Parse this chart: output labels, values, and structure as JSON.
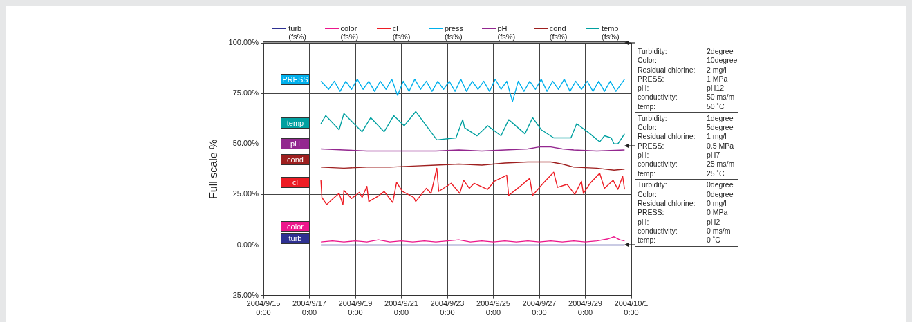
{
  "chart_data": {
    "type": "line",
    "ylabel": "Full scale %",
    "legend": "top",
    "grid": true,
    "marker": "none",
    "xlim": [
      "2004-09-15",
      "2004-10-01"
    ],
    "xticks": [
      {
        "value": "2004-09-15",
        "label": "2004/9/15\n0:00"
      },
      {
        "value": "2004-09-17",
        "label": "2004/9/17\n0:00"
      },
      {
        "value": "2004-09-19",
        "label": "2004/9/19\n0:00"
      },
      {
        "value": "2004-09-21",
        "label": "2004/9/21\n0:00"
      },
      {
        "value": "2004-09-23",
        "label": "2004/9/23\n0:00"
      },
      {
        "value": "2004-09-25",
        "label": "2004/9/25\n0:00"
      },
      {
        "value": "2004-09-27",
        "label": "2004/9/27\n0:00"
      },
      {
        "value": "2004-09-29",
        "label": "2004/9/29\n0:00"
      },
      {
        "value": "2004-10-01",
        "label": "2004/10/1\n0:00"
      }
    ],
    "ylim": [
      -25,
      100
    ],
    "yticks": [
      {
        "value": -25,
        "label": "-25.00%"
      },
      {
        "value": 0,
        "label": "0.00%"
      },
      {
        "value": 25,
        "label": "25.00%"
      },
      {
        "value": 50,
        "label": "50.00%"
      },
      {
        "value": 75,
        "label": "75.00%"
      },
      {
        "value": 100,
        "label": "100.00%"
      }
    ],
    "series": [
      {
        "name": "turb (fs%)",
        "color": "#2e3192",
        "x": [
          "2004-09-17T12:00",
          "2004-09-20T12:00",
          "2004-09-24T12:00",
          "2004-09-28T12:00",
          "2004-09-30T17:00"
        ],
        "values": [
          0,
          0,
          0,
          0,
          0
        ]
      },
      {
        "name": "color (fs%)",
        "color": "#ec168c",
        "x": [
          "2004-09-17T12:00",
          "2004-09-18T00:00",
          "2004-09-18T12:00",
          "2004-09-19T00:00",
          "2004-09-19T12:00",
          "2004-09-20T00:00",
          "2004-09-20T12:00",
          "2004-09-21T00:00",
          "2004-09-21T12:00",
          "2004-09-22T00:00",
          "2004-09-22T12:00",
          "2004-09-23T00:00",
          "2004-09-23T12:00",
          "2004-09-24T00:00",
          "2004-09-24T12:00",
          "2004-09-25T00:00",
          "2004-09-25T12:00",
          "2004-09-26T00:00",
          "2004-09-26T12:00",
          "2004-09-27T00:00",
          "2004-09-27T12:00",
          "2004-09-28T00:00",
          "2004-09-28T12:00",
          "2004-09-29T00:00",
          "2004-09-29T12:00",
          "2004-09-30T00:00",
          "2004-09-30T06:00",
          "2004-09-30T12:00",
          "2004-09-30T17:00"
        ],
        "values": [
          1.5,
          2,
          1.5,
          2,
          1.5,
          2.5,
          1.5,
          2,
          1.5,
          2,
          1.5,
          2,
          2.5,
          1.5,
          2,
          1.5,
          2,
          1.5,
          2,
          1.5,
          2,
          1.5,
          2,
          1.5,
          2,
          3,
          4,
          2.5,
          2
        ]
      },
      {
        "name": "cl (fs%)",
        "color": "#ed1c24",
        "x": [
          "2004-09-17T12:00",
          "2004-09-17T13:00",
          "2004-09-17T18:00",
          "2004-09-18T02:00",
          "2004-09-18T07:00",
          "2004-09-18T11:00",
          "2004-09-18T12:00",
          "2004-09-18T20:00",
          "2004-09-19T04:00",
          "2004-09-19T07:00",
          "2004-09-19T12:00",
          "2004-09-19T14:00",
          "2004-09-20T01:00",
          "2004-09-20T06:00",
          "2004-09-20T15:00",
          "2004-09-20T19:00",
          "2004-09-21T01:00",
          "2004-09-21T13:00",
          "2004-09-21T15:00",
          "2004-09-22T02:00",
          "2004-09-22T07:00",
          "2004-09-22T13:00",
          "2004-09-22T15:00",
          "2004-09-23T04:00",
          "2004-09-23T13:00",
          "2004-09-23T17:00",
          "2004-09-23T23:00",
          "2004-09-24T04:00",
          "2004-09-24T18:00",
          "2004-09-25T01:00",
          "2004-09-25T14:00",
          "2004-09-25T16:00",
          "2004-09-26T04:00",
          "2004-09-26T14:00",
          "2004-09-26T17:00",
          "2004-09-27T04:00",
          "2004-09-27T15:00",
          "2004-09-27T19:00",
          "2004-09-28T05:00",
          "2004-09-28T13:00",
          "2004-09-28T20:00",
          "2004-09-28T22:00",
          "2004-09-29T05:00",
          "2004-09-29T15:00",
          "2004-09-29T20:00",
          "2004-09-30T05:00",
          "2004-09-30T10:00",
          "2004-09-30T15:00",
          "2004-09-30T17:00"
        ],
        "values": [
          32,
          23.5,
          20,
          23.5,
          25.5,
          20,
          27,
          23,
          26,
          23.5,
          29,
          21.5,
          24.5,
          26.5,
          21,
          31,
          26.5,
          23.5,
          21.5,
          28,
          25.5,
          38,
          26.5,
          30.5,
          25.5,
          32,
          28,
          30.5,
          27.5,
          31.5,
          34.5,
          24.5,
          29,
          33,
          24.5,
          30.5,
          36,
          28.5,
          30,
          25,
          31.5,
          25.5,
          30.5,
          35.5,
          28,
          32,
          27.5,
          34,
          27.5
        ]
      },
      {
        "name": "press (fs%)",
        "color": "#00b0ec",
        "x": [
          "2004-09-17T12:00",
          "2004-09-17T20:00",
          "2004-09-18T02:00",
          "2004-09-18T08:00",
          "2004-09-18T14:00",
          "2004-09-18T20:00",
          "2004-09-19T02:00",
          "2004-09-19T08:00",
          "2004-09-19T14:00",
          "2004-09-19T20:00",
          "2004-09-20T02:00",
          "2004-09-20T08:00",
          "2004-09-20T14:00",
          "2004-09-20T20:00",
          "2004-09-21T02:00",
          "2004-09-21T08:00",
          "2004-09-21T14:00",
          "2004-09-21T20:00",
          "2004-09-22T02:00",
          "2004-09-22T08:00",
          "2004-09-22T14:00",
          "2004-09-22T20:00",
          "2004-09-23T02:00",
          "2004-09-23T08:00",
          "2004-09-23T14:00",
          "2004-09-23T20:00",
          "2004-09-24T02:00",
          "2004-09-24T08:00",
          "2004-09-24T14:00",
          "2004-09-24T20:00",
          "2004-09-25T02:00",
          "2004-09-25T08:00",
          "2004-09-25T14:00",
          "2004-09-25T20:00",
          "2004-09-26T02:00",
          "2004-09-26T08:00",
          "2004-09-26T14:00",
          "2004-09-26T20:00",
          "2004-09-27T02:00",
          "2004-09-27T08:00",
          "2004-09-27T14:00",
          "2004-09-27T20:00",
          "2004-09-28T02:00",
          "2004-09-28T08:00",
          "2004-09-28T14:00",
          "2004-09-28T20:00",
          "2004-09-29T02:00",
          "2004-09-29T08:00",
          "2004-09-29T14:00",
          "2004-09-29T20:00",
          "2004-09-30T02:00",
          "2004-09-30T08:00",
          "2004-09-30T17:00"
        ],
        "values": [
          81,
          77,
          81,
          76,
          81,
          77,
          82,
          77,
          81,
          76,
          81,
          77,
          82,
          74,
          81,
          76,
          82,
          77,
          81,
          76,
          81,
          77,
          81,
          76,
          82,
          76,
          81,
          77,
          81,
          76,
          82,
          77,
          81,
          71,
          81,
          76,
          81,
          77,
          82,
          76,
          81,
          77,
          82,
          76,
          81,
          77,
          81,
          76,
          81,
          76,
          81,
          76,
          82
        ]
      },
      {
        "name": "pH (fs%)",
        "color": "#93278f",
        "x": [
          "2004-09-17T12:00",
          "2004-09-18T12:00",
          "2004-09-19T12:00",
          "2004-09-20T12:00",
          "2004-09-21T12:00",
          "2004-09-22T12:00",
          "2004-09-23T12:00",
          "2004-09-24T12:00",
          "2004-09-25T12:00",
          "2004-09-26T12:00",
          "2004-09-27T00:00",
          "2004-09-27T12:00",
          "2004-09-28T00:00",
          "2004-09-28T12:00",
          "2004-09-29T12:00",
          "2004-09-30T17:00"
        ],
        "values": [
          47.5,
          47,
          46.5,
          46.5,
          46.5,
          46.5,
          47,
          46.5,
          47,
          47.5,
          48.5,
          48.5,
          47.5,
          47,
          46.5,
          47
        ]
      },
      {
        "name": "cond (fs%)",
        "color": "#9e1f1f",
        "x": [
          "2004-09-17T12:00",
          "2004-09-18T12:00",
          "2004-09-19T12:00",
          "2004-09-20T12:00",
          "2004-09-21T12:00",
          "2004-09-22T12:00",
          "2004-09-23T12:00",
          "2004-09-24T12:00",
          "2004-09-25T12:00",
          "2004-09-26T12:00",
          "2004-09-27T12:00",
          "2004-09-28T00:00",
          "2004-09-28T12:00",
          "2004-09-29T12:00",
          "2004-09-30T06:00",
          "2004-09-30T17:00"
        ],
        "values": [
          38.5,
          38,
          38.5,
          38.5,
          39,
          39.5,
          40,
          39.5,
          40.5,
          41,
          41,
          40,
          38.5,
          38,
          37,
          37.5
        ]
      },
      {
        "name": "temp (fs%)",
        "color": "#00a0a0",
        "x": [
          "2004-09-17T12:00",
          "2004-09-17T17:00",
          "2004-09-18T07:00",
          "2004-09-18T12:00",
          "2004-09-19T07:00",
          "2004-09-19T16:00",
          "2004-09-20T06:00",
          "2004-09-20T16:00",
          "2004-09-21T03:00",
          "2004-09-21T15:00",
          "2004-09-22T13:00",
          "2004-09-23T09:00",
          "2004-09-23T16:00",
          "2004-09-23T18:00",
          "2004-09-24T07:00",
          "2004-09-24T18:00",
          "2004-09-25T08:00",
          "2004-09-25T16:00",
          "2004-09-26T09:00",
          "2004-09-26T17:00",
          "2004-09-27T02:00",
          "2004-09-27T15:00",
          "2004-09-28T09:00",
          "2004-09-28T15:00",
          "2004-09-29T05:00",
          "2004-09-29T15:00",
          "2004-09-29T20:00",
          "2004-09-30T03:00",
          "2004-09-30T06:00",
          "2004-09-30T10:00",
          "2004-09-30T17:00"
        ],
        "values": [
          60,
          64,
          57,
          65,
          56,
          63,
          56,
          64,
          59,
          66,
          52,
          53,
          62,
          58,
          54,
          59,
          54,
          62,
          55,
          63,
          57,
          53,
          53,
          60,
          55,
          51,
          54,
          53,
          50,
          50,
          55
        ]
      }
    ],
    "annotations": [
      "turb",
      "color",
      "cl",
      "PRESS",
      "pH",
      "cond",
      "temp",
      "Turbidity:\t2degree\nColor:\t10degree\nResidual chlorine:\t2 mg/l\nPRESS:\t1 MPa\npH:\tpH12\nconductivity:\t50 ms/m\ntemp:\t50 ˚C",
      "Turbidity:\t1degree\nColor:\t5degree\nResidual chlorine:\t1 mg/l\nPRESS:\t0.5 MPa\npH:\tpH7\nconductivity:\t25 ms/m\ntemp:\t25 ˚C",
      "Turbidity:\t0degree\nColor:\t0degree\nResidual chlorine:\t0 mg/l\nPRESS:\t0 MPa\npH:\tpH2\nconductivity:\t0 ms/m\ntemp:\t0 ˚C"
    ]
  }
}
